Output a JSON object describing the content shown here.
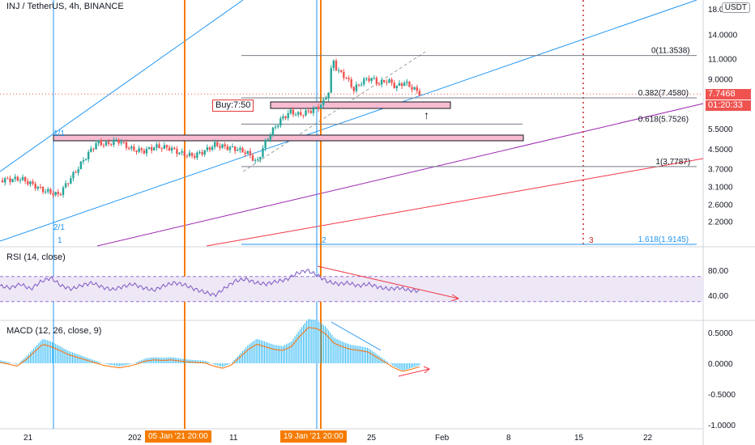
{
  "header": {
    "title": "INJ / TetherUS, 4h, BINANCE"
  },
  "axis_badge": "USDT",
  "price_tags": {
    "last": "7.7468",
    "countdown": "01:20:33"
  },
  "buy_label": "Buy:7:50",
  "fib_labels": [
    "0(11.3538)",
    "0.382(7.4580)",
    "0.618(5.7526)",
    "1(3.7787)",
    "1.618(1.9145)"
  ],
  "cycle_labels": [
    "1",
    "2",
    "3",
    "1/1",
    "2/1"
  ],
  "time_boxes": [
    "05 Jan '21  20:00",
    "19 Jan '21  20:00"
  ],
  "panes": {
    "rsi_title": "RSI (14, close)",
    "macd_title": "MACD (12, 26, close, 9)"
  },
  "colors": {
    "up": "#26a69a",
    "down": "#ef5350",
    "blue_line": "#2196f3",
    "purple_line": "#9c27b0",
    "red_line": "#f23645",
    "orange_line": "#f57c00",
    "rsi_line": "#7e57c2",
    "macd_hist": "#29b6f6",
    "signal": "#ff6d00"
  },
  "chart_data": [
    {
      "type": "candlestick",
      "title": "INJ / TetherUS, 4h, BINANCE",
      "y_ticks": [
        "18.0000",
        "14.0000",
        "11.0000",
        "9.0000",
        "7.0000",
        "5.5000",
        "4.5000",
        "3.7000",
        "3.1000",
        "2.6000",
        "2.2000"
      ],
      "x_ticks": [
        "21",
        "202",
        "11",
        "25",
        "Feb",
        "8",
        "15",
        "22"
      ],
      "scale": "log",
      "close_path": [
        [
          0,
          3.3
        ],
        [
          5,
          3.35
        ],
        [
          10,
          3.0
        ],
        [
          14,
          2.85
        ],
        [
          18,
          3.6
        ],
        [
          21,
          4.3
        ],
        [
          23,
          4.8
        ],
        [
          25,
          4.7
        ],
        [
          28,
          4.9
        ],
        [
          31,
          4.5
        ],
        [
          34,
          4.4
        ],
        [
          37,
          4.6
        ],
        [
          40,
          4.55
        ],
        [
          43,
          4.3
        ],
        [
          46,
          4.2
        ],
        [
          49,
          4.45
        ],
        [
          51,
          4.7
        ],
        [
          53,
          4.6
        ],
        [
          56,
          4.5
        ],
        [
          59,
          4.3
        ],
        [
          61,
          3.9
        ],
        [
          63,
          4.8
        ],
        [
          65,
          5.5
        ],
        [
          67,
          6.1
        ],
        [
          69,
          6.5
        ],
        [
          71,
          6.3
        ],
        [
          73,
          6.5
        ],
        [
          75,
          6.7
        ],
        [
          77,
          7.2
        ],
        [
          78,
          8.0
        ],
        [
          79,
          11.0
        ],
        [
          80,
          9.8
        ],
        [
          82,
          9.2
        ],
        [
          84,
          8.1
        ],
        [
          86,
          8.8
        ],
        [
          88,
          9.1
        ],
        [
          90,
          8.6
        ],
        [
          92,
          8.9
        ],
        [
          94,
          8.3
        ],
        [
          96,
          8.7
        ],
        [
          98,
          8.2
        ],
        [
          100,
          7.75
        ]
      ],
      "fib_levels": [
        {
          "ratio": "0",
          "price": 11.3538
        },
        {
          "ratio": "0.382",
          "price": 7.458
        },
        {
          "ratio": "0.618",
          "price": 5.7526
        },
        {
          "ratio": "1",
          "price": 3.7787
        },
        {
          "ratio": "1.618",
          "price": 1.9145
        }
      ],
      "last_price": 7.7468,
      "buy_price": 7.5
    },
    {
      "type": "line",
      "title": "RSI (14, close)",
      "y_ticks": [
        "80.00",
        "40.00"
      ],
      "band": [
        30,
        70
      ],
      "values": [
        55,
        52,
        58,
        50,
        62,
        68,
        55,
        50,
        56,
        60,
        53,
        49,
        54,
        58,
        52,
        48,
        55,
        60,
        57,
        50,
        45,
        40,
        52,
        63,
        66,
        60,
        58,
        62,
        65,
        75,
        80,
        72,
        62,
        58,
        60,
        55,
        58,
        53,
        50,
        52,
        48,
        47
      ]
    },
    {
      "type": "bar",
      "title": "MACD (12, 26, close, 9)",
      "y_ticks": [
        "0.5000",
        "0.0000",
        "-0.5000",
        "-1.0000"
      ],
      "hist": [
        0.05,
        0.02,
        -0.02,
        0.1,
        0.25,
        0.4,
        0.35,
        0.28,
        0.2,
        0.15,
        0.1,
        0.05,
        0.0,
        -0.03,
        -0.05,
        -0.02,
        0.02,
        0.08,
        0.1,
        0.09,
        0.1,
        0.08,
        0.06,
        0.05,
        0.04,
        -0.02,
        -0.06,
        0.0,
        0.15,
        0.3,
        0.4,
        0.35,
        0.3,
        0.28,
        0.35,
        0.55,
        0.72,
        0.7,
        0.6,
        0.42,
        0.35,
        0.3,
        0.28,
        0.25,
        0.15,
        0.05,
        -0.05,
        -0.12,
        -0.08,
        -0.03
      ]
    }
  ]
}
